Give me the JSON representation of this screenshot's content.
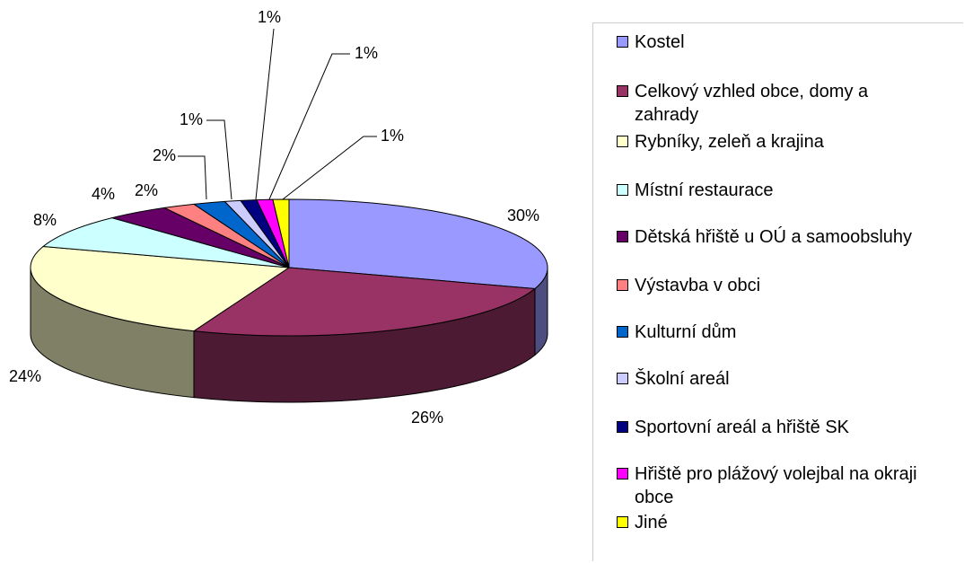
{
  "chart_data": {
    "type": "pie3d",
    "categories": [
      "Kostel",
      "Celkový vzhled obce, domy a zahrady",
      "Rybníky, zeleň a krajina",
      "Místní restaurace",
      "Dětská hřiště u OÚ a samoobsluhy",
      "Výstavba v obci",
      "Kulturní dům",
      "Školní areál",
      "Sportovní areál a hřiště SK",
      "Hřiště pro plážový volejbal na okraji obce",
      "Jiné"
    ],
    "values": [
      30,
      26,
      24,
      8,
      4,
      2,
      2,
      1,
      1,
      1,
      1
    ],
    "value_labels": [
      "30%",
      "26%",
      "24%",
      "8%",
      "4%",
      "2%",
      "2%",
      "1%",
      "1%",
      "1%",
      "1%"
    ],
    "colors": [
      "#9999ff",
      "#993366",
      "#ffffcc",
      "#ccffff",
      "#660066",
      "#ff8080",
      "#0066cc",
      "#ccccff",
      "#000080",
      "#ff00ff",
      "#ffff00"
    ],
    "legend": "right"
  }
}
